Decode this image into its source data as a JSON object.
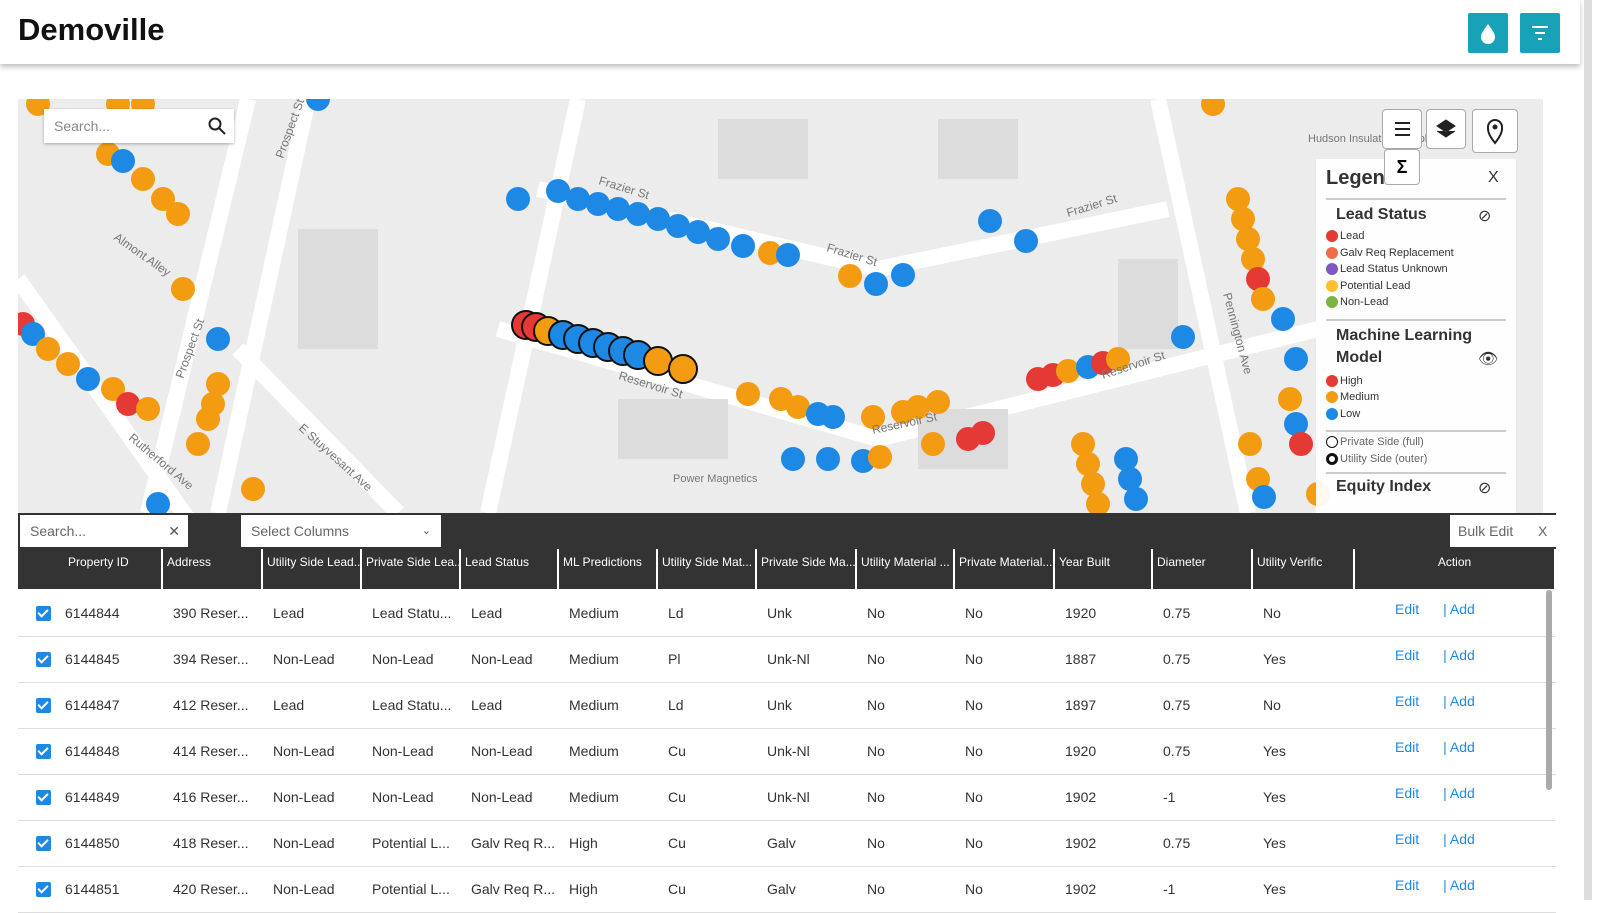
{
  "header": {
    "title": "Demoville"
  },
  "map": {
    "search_placeholder": "Search...",
    "street_labels": [
      "Frazier St",
      "Frazier St",
      "Frazier St",
      "Prospect St",
      "Prospect St",
      "Almont Alley",
      "Rutherford Ave",
      "E Stuyvesant Ave",
      "Reservoir St",
      "Reservoir St",
      "Reservoir St",
      "Pennington Ave"
    ],
    "place_labels": [
      "Hudson Insulation Supply",
      "Power Magnetics"
    ],
    "legend": {
      "title": "Legend",
      "sections": [
        {
          "title": "Lead Status",
          "items": [
            "Lead",
            "Galv Req Replacement",
            "Lead Status Unknown",
            "Potential Lead",
            "Non-Lead"
          ]
        },
        {
          "title": "Machine Learning Model",
          "items": [
            "High",
            "Medium",
            "Low"
          ]
        }
      ],
      "symbols": [
        "Private Side (full)",
        "Utility Side (outer)"
      ],
      "equity": "Equity Index"
    }
  },
  "table": {
    "search_placeholder": "Search...",
    "select_columns": "Select Columns",
    "bulk_edit": "Bulk Edit",
    "close": "X",
    "columns": [
      "Property ID",
      "Address",
      "Utility Side Lead...",
      "Private Side Lea...",
      "Lead Status",
      "ML Predictions",
      "Utility Side Mat...",
      "Private Side Ma...",
      "Utility Material ...",
      "Private Material...",
      "Year Built",
      "Diameter",
      "Utility Verific",
      "Action"
    ],
    "rows": [
      [
        "6144844",
        "390 Reser...",
        "Lead",
        "Lead Statu...",
        "Lead",
        "Medium",
        "Ld",
        "Unk",
        "No",
        "No",
        "1920",
        "0.75",
        "No"
      ],
      [
        "6144845",
        "394 Reser...",
        "Non-Lead",
        "Non-Lead",
        "Non-Lead",
        "Medium",
        "Pl",
        "Unk-Nl",
        "No",
        "No",
        "1887",
        "0.75",
        "Yes"
      ],
      [
        "6144847",
        "412 Reser...",
        "Lead",
        "Lead Statu...",
        "Lead",
        "Medium",
        "Ld",
        "Unk",
        "No",
        "No",
        "1897",
        "0.75",
        "No"
      ],
      [
        "6144848",
        "414 Reser...",
        "Non-Lead",
        "Non-Lead",
        "Non-Lead",
        "Medium",
        "Cu",
        "Unk-Nl",
        "No",
        "No",
        "1920",
        "0.75",
        "Yes"
      ],
      [
        "6144849",
        "416 Reser...",
        "Non-Lead",
        "Non-Lead",
        "Non-Lead",
        "Medium",
        "Cu",
        "Unk-Nl",
        "No",
        "No",
        "1902",
        "-1",
        "Yes"
      ],
      [
        "6144850",
        "418 Reser...",
        "Non-Lead",
        "Potential L...",
        "Galv Req R...",
        "High",
        "Cu",
        "Galv",
        "No",
        "No",
        "1902",
        "0.75",
        "Yes"
      ],
      [
        "6144851",
        "420 Reser...",
        "Non-Lead",
        "Potential L...",
        "Galv Req R...",
        "High",
        "Cu",
        "Galv",
        "No",
        "No",
        "1902",
        "-1",
        "Yes"
      ]
    ],
    "actions": [
      "Edit",
      "| Add"
    ]
  }
}
